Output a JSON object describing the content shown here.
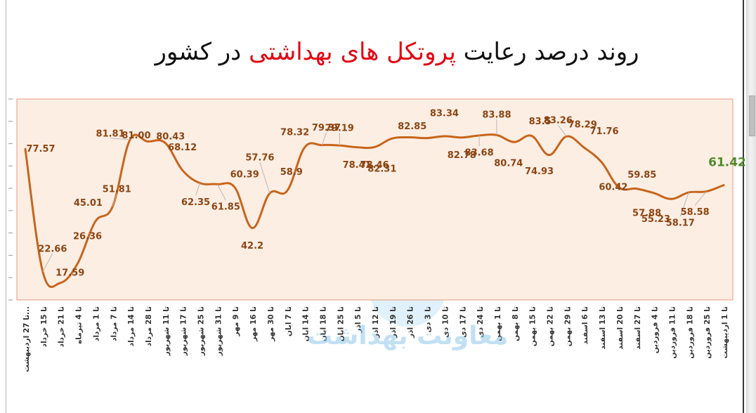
{
  "title": {
    "before": "روند درصد رعایت",
    "highlight": "پروتکل های بهداشتی",
    "after": "در کشور"
  },
  "watermark": "معاونت بهداشت",
  "colors": {
    "line": "#c8651b",
    "label": "#8b4513",
    "highlight_label": "#4f8a2a",
    "plot_bg": "#fdeee4",
    "plot_border": "#e59a82",
    "title_highlight": "#e30613"
  },
  "chart_data": {
    "type": "line",
    "title": "روند درصد رعایت پروتکل های بهداشتی در کشور",
    "xlabel": "",
    "ylabel": "",
    "grid": false,
    "legend": "none",
    "ylim": [
      10,
      100
    ],
    "categories": [
      "تا 27 اردیبهشت...",
      "تا 15 خرداد",
      "تا 21 خرداد",
      "تا 4 تیرماه",
      "تا 1 مرداد",
      "تا 7 مرداد",
      "تا 14 مرداد",
      "تا 28 مرداد",
      "تا 11 شهریور",
      "تا 17 شهریور",
      "تا 25 شهریور",
      "تا 31 شهریور",
      "تا 9 مهر",
      "تا 16 مهر",
      "تا 30 مهر",
      "تا 7 ابان",
      "تا 14 ابان",
      "تا 18 ابان",
      "تا 25 ابان",
      "تا 5 اذر",
      "تا 12 اذر",
      "تا 19 اذر",
      "تا 26 اذر",
      "تا 3 دی",
      "تا 10 دی",
      "تا 17 دی",
      "تا 24 دی",
      "تا 1 بهمن",
      "تا 8 بهمن",
      "تا 15 بهمن",
      "تا 22 بهمن",
      "تا 29 بهمن",
      "تا 6 اسفند",
      "تا 13 اسفند",
      "تا 20 اسفند",
      "تا 27 اسفند",
      "تا 4 فروردین",
      "تا 11 فروردین",
      "تا 18 فروردین",
      "تا 25 فروردین",
      "تا 1 اردیبهشت"
    ],
    "series": [
      {
        "values": [
          77.57,
          22.66,
          17.59,
          26.36,
          45.01,
          51.81,
          81.81,
          81.0,
          80.43,
          68.12,
          62.35,
          61.85,
          60.39,
          42.2,
          57.76,
          58.9,
          78.32,
          79.37,
          79.19,
          78.41,
          78.46,
          82.31,
          82.85,
          82.5,
          83.34,
          82.78,
          83.68,
          83.88,
          80.74,
          83.5,
          74.93,
          83.26,
          78.29,
          71.76,
          60.42,
          59.85,
          57.88,
          55.23,
          58.17,
          58.58,
          61.42
        ],
        "labels": [
          "77.57",
          "22.66",
          "17.59",
          "26.36",
          "45.01",
          "51.81",
          "81.81",
          "81.00",
          "80.43",
          "68.12",
          "62.35",
          "61.85",
          "60.39",
          "42.2",
          "57.76",
          "58.9",
          "78.32",
          "79.37",
          "79.19",
          "78.41",
          "78.46",
          "82.31",
          "82.85",
          "",
          "83.34",
          "82.78",
          "83.68",
          "83.88",
          "80.74",
          "83.5",
          "74.93",
          "83.26",
          "78.29",
          "71.76",
          "60.42",
          "59.85",
          "57.88",
          "55.23",
          "58.17",
          "58.58",
          "61.42"
        ]
      }
    ]
  }
}
